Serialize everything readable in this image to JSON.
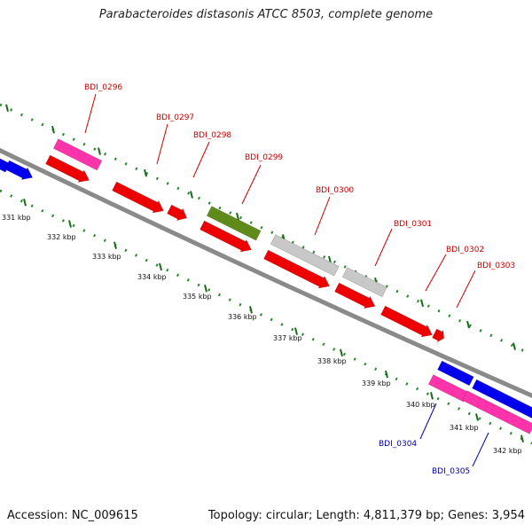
{
  "title": "Parabacteroides distasonis ATCC 8503, complete genome",
  "accession_label": "Accession: NC_009615",
  "summary_label": "Topology: circular; Length: 4,811,379 bp; Genes: 3,954",
  "colors": {
    "backbone": "#8a8a8a",
    "forward_strand_genes": "#ee0000",
    "reverse_strand_genes": "#0000ee",
    "rrna": "#ff33aa",
    "trna_or_other": "#5f8b1a",
    "pseudo": "#c8c8c8",
    "tick_marks": "#2a8a2a",
    "label_text_top": "#cc0000",
    "label_text_bottom": "#0000aa"
  },
  "kbp_ticks": [
    "331 kbp",
    "332 kbp",
    "333 kbp",
    "334 kbp",
    "335 kbp",
    "336 kbp",
    "337 kbp",
    "338 kbp",
    "339 kbp",
    "340 kbp",
    "341 kbp",
    "342 kbp"
  ],
  "gene_labels_top": [
    "BDI_0296",
    "BDI_0297",
    "BDI_0298",
    "BDI_0299",
    "BDI_0300",
    "BDI_0301",
    "BDI_0302",
    "BDI_0303"
  ],
  "gene_labels_bottom": [
    "BDI_0304",
    "BDI_0305"
  ]
}
